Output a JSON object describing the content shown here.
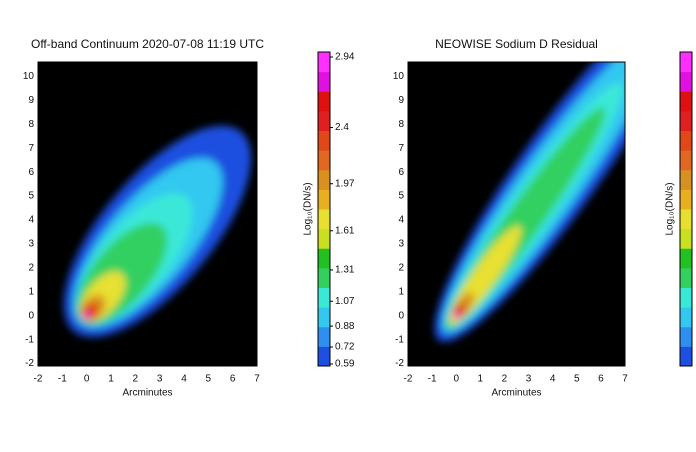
{
  "chart_data": [
    {
      "type": "heatmap",
      "title": "Off-band Continuum 2020-07-08 11:19 UTC",
      "xlabel": "Arcminutes",
      "xlim": [
        -2,
        7
      ],
      "xticks": [
        -2,
        -1,
        0,
        1,
        2,
        3,
        4,
        5,
        6,
        7
      ],
      "ylim": [
        -2.1,
        10.6
      ],
      "yticks": [
        -2,
        -1,
        0,
        1,
        2,
        3,
        4,
        5,
        6,
        7,
        8,
        9,
        10
      ],
      "colorbar_label": "Log₁₀(DN/s)",
      "colorbar_ticks": [
        0.59,
        0.72,
        0.88,
        1.07,
        1.31,
        1.61,
        1.97,
        2.4,
        2.94
      ],
      "colormap": [
        "#1f4fe0",
        "#2f8ff0",
        "#33c8f0",
        "#3ae8d8",
        "#33d060",
        "#22c020",
        "#c8e020",
        "#e8e030",
        "#e8b020",
        "#d89020",
        "#e06820",
        "#e04818",
        "#e02020",
        "#e01010",
        "#e010e0",
        "#ff30ff"
      ]
    },
    {
      "type": "heatmap",
      "title": "NEOWISE Sodium D Residual",
      "xlabel": "Arcminutes",
      "xlim": [
        -2,
        7
      ],
      "xticks": [
        -2,
        -1,
        0,
        1,
        2,
        3,
        4,
        5,
        6,
        7
      ],
      "ylim": [
        -2.1,
        10.6
      ],
      "yticks": [
        -2,
        -1,
        0,
        1,
        2,
        3,
        4,
        5,
        6,
        7,
        8,
        9,
        10
      ],
      "colorbar_label": "Log₁₀(DN/s)",
      "colormap": [
        "#1f4fe0",
        "#2f8ff0",
        "#33c8f0",
        "#3ae8d8",
        "#33d060",
        "#22c020",
        "#c8e020",
        "#e8e030",
        "#e8b020",
        "#d89020",
        "#e06820",
        "#e04818",
        "#e02020",
        "#e01010",
        "#e010e0",
        "#ff30ff"
      ]
    }
  ]
}
